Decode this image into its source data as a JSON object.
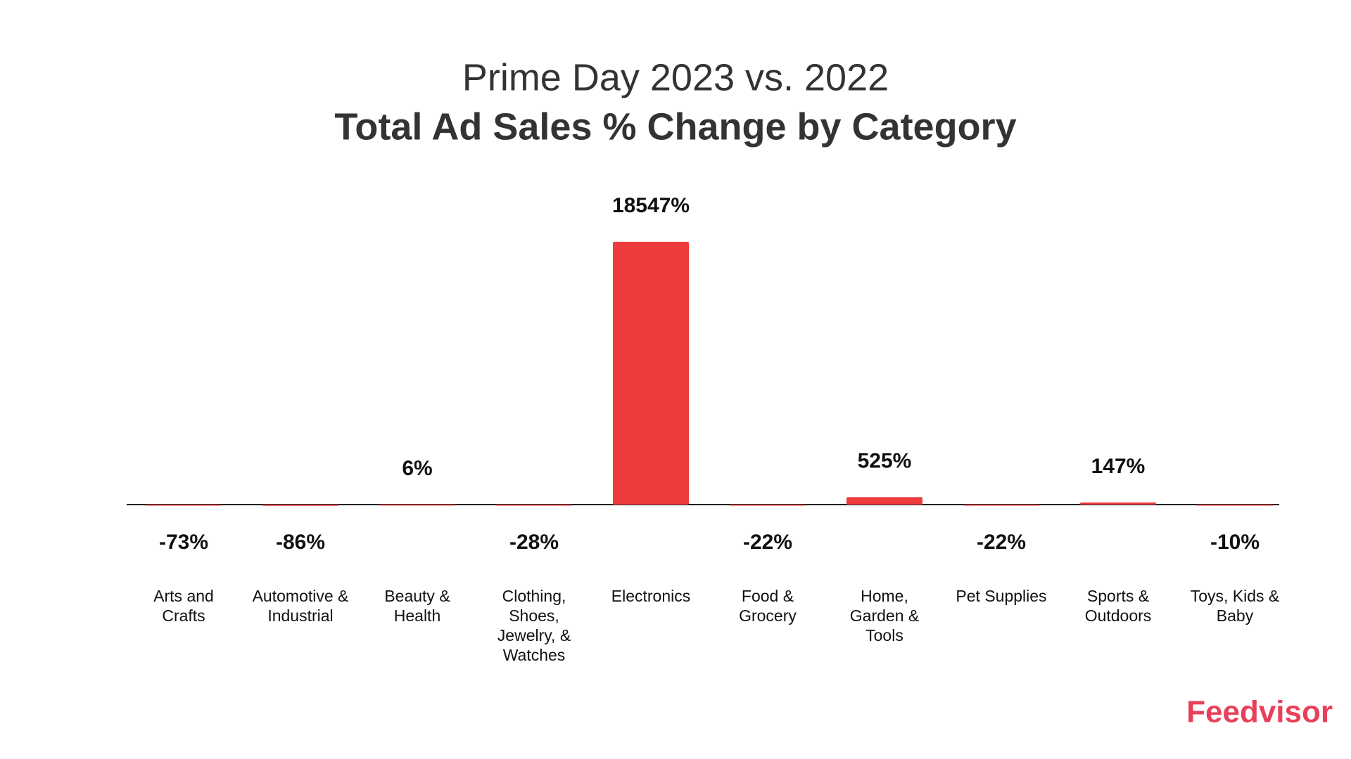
{
  "chart_data": {
    "type": "bar",
    "title": "Prime Day 2023 vs. 2022",
    "subtitle": "Total Ad Sales % Change by Category",
    "categories": [
      "Arts and Crafts",
      "Automotive & Industrial",
      "Beauty & Health",
      "Clothing, Shoes, Jewelry, & Watches",
      "Electronics",
      "Food & Grocery",
      "Home, Garden & Tools",
      "Pet Supplies",
      "Sports & Outdoors",
      "Toys, Kids & Baby"
    ],
    "values": [
      -73,
      -86,
      6,
      -28,
      18547,
      -22,
      525,
      -22,
      147,
      -10
    ],
    "value_labels": [
      "-73%",
      "-86%",
      "6%",
      "-28%",
      "18547%",
      "-22%",
      "525%",
      "-22%",
      "147%",
      "-10%"
    ],
    "color": "#ee3b3d",
    "brand": "Feedvisor"
  }
}
